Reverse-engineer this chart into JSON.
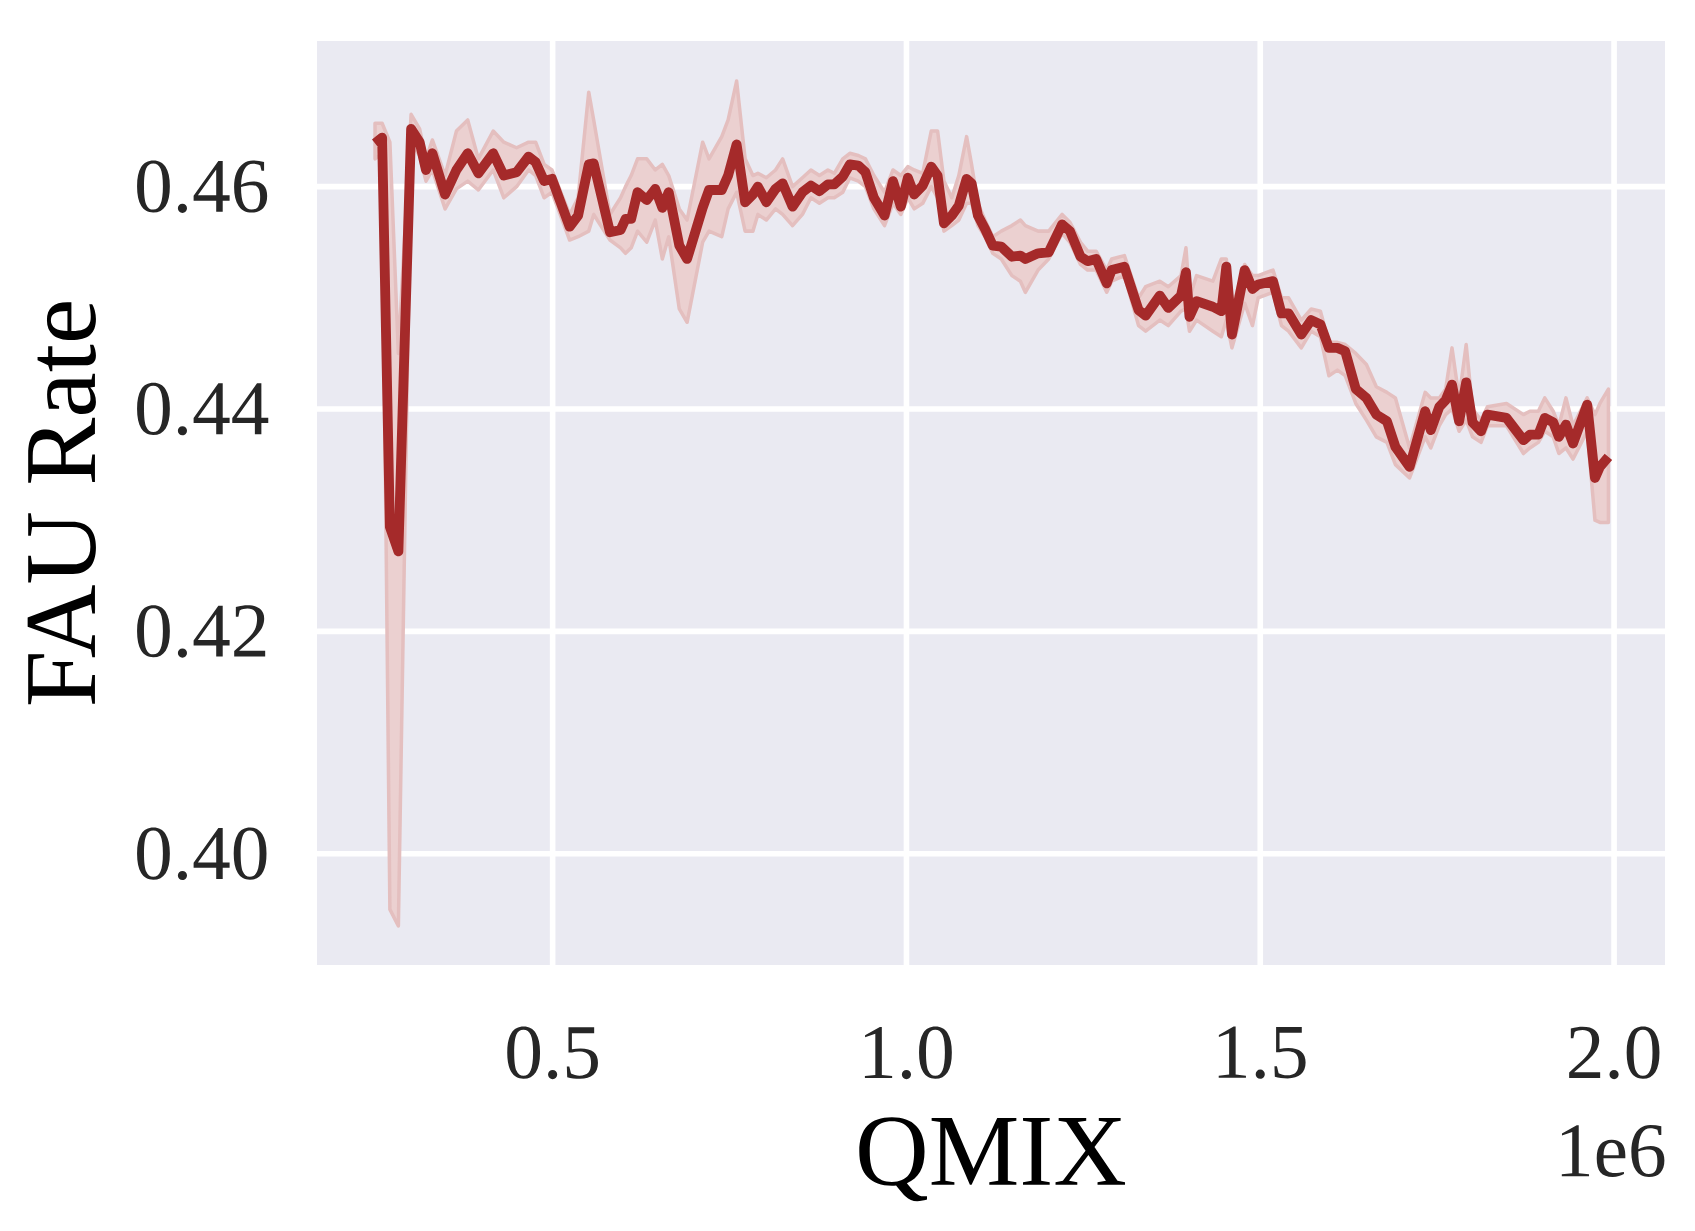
{
  "chart_data": {
    "type": "line",
    "xlabel": "QMIX",
    "ylabel": "FAU Rate",
    "annotations": [
      "1e6"
    ],
    "x": [
      0.249,
      0.259,
      0.27,
      0.282,
      0.3,
      0.312,
      0.321,
      0.33,
      0.348,
      0.364,
      0.38,
      0.395,
      0.416,
      0.431,
      0.449,
      0.466,
      0.476,
      0.488,
      0.499,
      0.524,
      0.536,
      0.551,
      0.558,
      0.581,
      0.596,
      0.603,
      0.611,
      0.62,
      0.633,
      0.645,
      0.655,
      0.664,
      0.679,
      0.69,
      0.712,
      0.721,
      0.739,
      0.748,
      0.76,
      0.772,
      0.783,
      0.79,
      0.802,
      0.815,
      0.825,
      0.839,
      0.853,
      0.865,
      0.877,
      0.889,
      0.898,
      0.91,
      0.92,
      0.932,
      0.942,
      0.954,
      0.969,
      0.981,
      0.992,
      1.002,
      1.011,
      1.023,
      1.035,
      1.044,
      1.053,
      1.064,
      1.074,
      1.085,
      1.092,
      1.101,
      1.111,
      1.122,
      1.134,
      1.149,
      1.161,
      1.168,
      1.186,
      1.201,
      1.22,
      1.231,
      1.246,
      1.256,
      1.268,
      1.283,
      1.29,
      1.308,
      1.328,
      1.338,
      1.358,
      1.37,
      1.388,
      1.395,
      1.4,
      1.41,
      1.433,
      1.445,
      1.452,
      1.46,
      1.478,
      1.489,
      1.497,
      1.518,
      1.53,
      1.54,
      1.558,
      1.572,
      1.585,
      1.597,
      1.609,
      1.62,
      1.635,
      1.65,
      1.664,
      1.679,
      1.691,
      1.711,
      1.733,
      1.741,
      1.753,
      1.762,
      1.771,
      1.781,
      1.791,
      1.8,
      1.812,
      1.821,
      1.848,
      1.872,
      1.881,
      1.893,
      1.902,
      1.914,
      1.922,
      1.932,
      1.942,
      1.962,
      1.973,
      1.98,
      1.992
    ],
    "series": [
      {
        "color": "#a52a2a",
        "values": [
          0.4639,
          0.4644,
          0.4294,
          0.4272,
          0.4652,
          0.464,
          0.4615,
          0.463,
          0.4593,
          0.4615,
          0.463,
          0.4612,
          0.463,
          0.461,
          0.4613,
          0.4627,
          0.4622,
          0.4605,
          0.4607,
          0.4564,
          0.4574,
          0.462,
          0.4621,
          0.4559,
          0.4561,
          0.4571,
          0.4571,
          0.4595,
          0.4588,
          0.4598,
          0.4581,
          0.4595,
          0.4547,
          0.4535,
          0.4581,
          0.4597,
          0.4597,
          0.461,
          0.4638,
          0.4586,
          0.4593,
          0.46,
          0.4586,
          0.4598,
          0.4603,
          0.4582,
          0.4595,
          0.4601,
          0.4596,
          0.4602,
          0.4602,
          0.4609,
          0.462,
          0.4619,
          0.4613,
          0.459,
          0.4574,
          0.4605,
          0.4582,
          0.4608,
          0.4593,
          0.4601,
          0.4618,
          0.461,
          0.4567,
          0.4574,
          0.4583,
          0.4607,
          0.4603,
          0.4574,
          0.4562,
          0.4547,
          0.4546,
          0.4537,
          0.4538,
          0.4535,
          0.454,
          0.4541,
          0.4566,
          0.456,
          0.4537,
          0.4533,
          0.4535,
          0.4513,
          0.4525,
          0.4528,
          0.4489,
          0.4484,
          0.4502,
          0.4491,
          0.4502,
          0.4523,
          0.4483,
          0.4497,
          0.4492,
          0.4488,
          0.4528,
          0.4467,
          0.4525,
          0.4508,
          0.4512,
          0.4515,
          0.4486,
          0.4486,
          0.4467,
          0.448,
          0.4476,
          0.4455,
          0.4455,
          0.4452,
          0.4418,
          0.441,
          0.4395,
          0.4389,
          0.4366,
          0.4348,
          0.4398,
          0.4381,
          0.4402,
          0.4408,
          0.4422,
          0.4389,
          0.4424,
          0.4388,
          0.438,
          0.4395,
          0.4392,
          0.4372,
          0.4377,
          0.4377,
          0.4392,
          0.4388,
          0.4375,
          0.4386,
          0.4369,
          0.4404,
          0.4338,
          0.4348,
          0.4357
        ],
        "lower": [
          0.4625,
          0.463,
          0.395,
          0.3935,
          0.464,
          0.4628,
          0.4605,
          0.4615,
          0.458,
          0.4598,
          0.4605,
          0.4597,
          0.4615,
          0.459,
          0.46,
          0.4615,
          0.461,
          0.459,
          0.4595,
          0.4552,
          0.4555,
          0.456,
          0.4575,
          0.4552,
          0.4545,
          0.454,
          0.4545,
          0.456,
          0.455,
          0.457,
          0.4535,
          0.4555,
          0.449,
          0.4478,
          0.455,
          0.456,
          0.4555,
          0.458,
          0.4595,
          0.456,
          0.456,
          0.4575,
          0.457,
          0.458,
          0.4575,
          0.4565,
          0.4575,
          0.459,
          0.4585,
          0.459,
          0.459,
          0.4595,
          0.4608,
          0.4605,
          0.46,
          0.458,
          0.4565,
          0.4585,
          0.4575,
          0.459,
          0.458,
          0.4585,
          0.46,
          0.459,
          0.456,
          0.4565,
          0.457,
          0.4585,
          0.4585,
          0.4565,
          0.4555,
          0.454,
          0.4535,
          0.452,
          0.4515,
          0.4505,
          0.4525,
          0.4535,
          0.4558,
          0.455,
          0.453,
          0.4525,
          0.4525,
          0.4505,
          0.4515,
          0.452,
          0.4475,
          0.447,
          0.448,
          0.4475,
          0.4488,
          0.449,
          0.447,
          0.448,
          0.447,
          0.4465,
          0.448,
          0.4455,
          0.4495,
          0.4475,
          0.45,
          0.4505,
          0.4475,
          0.447,
          0.4455,
          0.447,
          0.4465,
          0.443,
          0.4435,
          0.443,
          0.4405,
          0.439,
          0.4375,
          0.437,
          0.435,
          0.4338,
          0.4375,
          0.4365,
          0.4385,
          0.4395,
          0.44,
          0.438,
          0.439,
          0.4375,
          0.437,
          0.4385,
          0.4385,
          0.436,
          0.4365,
          0.437,
          0.438,
          0.4375,
          0.436,
          0.4365,
          0.4355,
          0.438,
          0.43,
          0.4298,
          0.4298
        ],
        "upper": [
          0.4657,
          0.4657,
          0.464,
          0.445,
          0.4665,
          0.4652,
          0.4625,
          0.4642,
          0.461,
          0.465,
          0.466,
          0.4625,
          0.465,
          0.464,
          0.4635,
          0.464,
          0.464,
          0.462,
          0.4615,
          0.4575,
          0.459,
          0.4685,
          0.466,
          0.4575,
          0.459,
          0.46,
          0.461,
          0.4625,
          0.4625,
          0.4615,
          0.462,
          0.461,
          0.458,
          0.457,
          0.464,
          0.4625,
          0.4645,
          0.466,
          0.4695,
          0.4625,
          0.461,
          0.4612,
          0.4608,
          0.4615,
          0.4625,
          0.46,
          0.4608,
          0.4615,
          0.461,
          0.4615,
          0.4612,
          0.4625,
          0.463,
          0.4628,
          0.4625,
          0.461,
          0.4595,
          0.4615,
          0.461,
          0.4618,
          0.4615,
          0.4612,
          0.465,
          0.465,
          0.4605,
          0.459,
          0.461,
          0.4645,
          0.462,
          0.4585,
          0.457,
          0.4555,
          0.456,
          0.4565,
          0.457,
          0.4565,
          0.456,
          0.456,
          0.4575,
          0.4568,
          0.455,
          0.4542,
          0.4542,
          0.4525,
          0.4535,
          0.4538,
          0.45,
          0.451,
          0.4515,
          0.451,
          0.452,
          0.4545,
          0.45,
          0.452,
          0.4515,
          0.4535,
          0.4535,
          0.449,
          0.453,
          0.452,
          0.452,
          0.4525,
          0.45,
          0.45,
          0.448,
          0.449,
          0.4488,
          0.446,
          0.446,
          0.4458,
          0.445,
          0.444,
          0.442,
          0.4415,
          0.441,
          0.4365,
          0.4415,
          0.441,
          0.441,
          0.4418,
          0.4455,
          0.441,
          0.4458,
          0.44,
          0.439,
          0.4402,
          0.4405,
          0.4395,
          0.4398,
          0.4398,
          0.441,
          0.4398,
          0.4385,
          0.441,
          0.4385,
          0.441,
          0.4395,
          0.4405,
          0.4418
        ]
      }
    ],
    "xlim": [
      0.167,
      2.072
    ],
    "ylim": [
      0.39,
      0.4731
    ],
    "xticks": [
      0.5,
      {
        "value": 1,
        "label": "1.0"
      },
      1.5,
      {
        "value": 2,
        "label": "2.0"
      }
    ],
    "yticks": [
      {
        "value": 0.4,
        "label": "0.40"
      },
      0.42,
      0.44,
      0.46
    ],
    "grid": true
  }
}
